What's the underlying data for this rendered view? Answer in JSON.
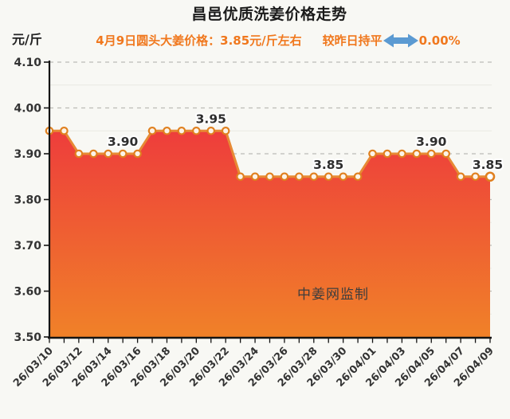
{
  "header": {
    "title": "昌邑优质洗姜价格走势",
    "subtitle": {
      "price_text": "4月9日圆头大姜价格：3.85元/斤左右",
      "trend_text": "较昨日持平",
      "trend_pct": "0.00%",
      "trend_arrow_icon": "left-right-arrow"
    }
  },
  "watermark": "中姜网监制",
  "colors": {
    "subtitle_orange": "#f0781e",
    "arrow_blue": "#5b9ad2",
    "line_orange": "#e78a35",
    "marker_stroke": "#e0801f",
    "marker_fill": "#fcf3e8",
    "area_top_red": "#ee3c3c",
    "area_bottom_orange": "#f08228",
    "grid_major": "#bcbcb6",
    "grid_minor": "#e9e9e2",
    "axis_black": "#141414",
    "background": "#f8f8f4"
  },
  "chart_data": {
    "type": "area",
    "title": "昌邑优质洗姜价格走势",
    "ylabel_unit": "元/斤",
    "ylim": [
      3.5,
      4.1
    ],
    "y_ticks": [
      "3.50",
      "3.60",
      "3.70",
      "3.80",
      "3.90",
      "4.00",
      "4.10"
    ],
    "grid": {
      "major_dashed": true,
      "minor_step": 0.05,
      "major_step": 0.1
    },
    "x_tick_labels": [
      "26/03/10",
      "26/03/12",
      "26/03/14",
      "26/03/16",
      "26/03/18",
      "26/03/20",
      "26/03/22",
      "26/03/24",
      "26/03/26",
      "26/03/28",
      "26/03/30",
      "26/04/01",
      "26/04/03",
      "26/04/05",
      "26/04/07",
      "26/04/09"
    ],
    "x_label_every": 2,
    "values": [
      3.95,
      3.95,
      3.9,
      3.9,
      3.9,
      3.9,
      3.9,
      3.95,
      3.95,
      3.95,
      3.95,
      3.95,
      3.95,
      3.85,
      3.85,
      3.85,
      3.85,
      3.85,
      3.85,
      3.85,
      3.85,
      3.85,
      3.9,
      3.9,
      3.9,
      3.9,
      3.9,
      3.9,
      3.85,
      3.85,
      3.85
    ],
    "point_labels": [
      {
        "index": 5,
        "text": "3.90"
      },
      {
        "index": 11,
        "text": "3.95"
      },
      {
        "index": 19,
        "text": "3.85"
      },
      {
        "index": 26,
        "text": "3.90"
      },
      {
        "index": 30,
        "text": "3.85"
      }
    ],
    "legend": "none"
  }
}
